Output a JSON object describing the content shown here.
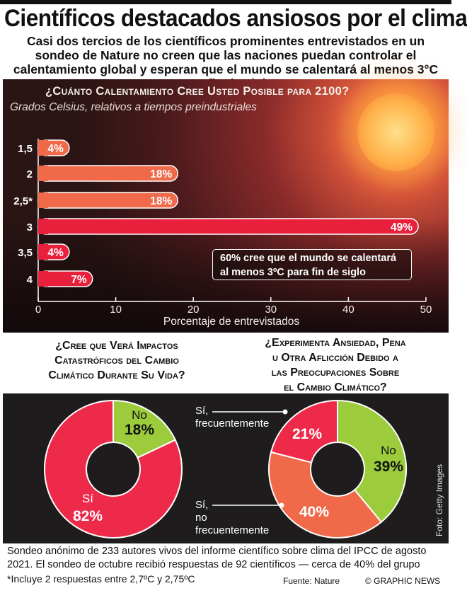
{
  "title": "Científicos destacados ansiosos por el clima",
  "subtitle": "Casi dos tercios de los científicos prominentes entrevistados en un sondeo de Nature no creen que las naciones puedan controlar el calentamiento global y esperan que el mundo se calentará al menos 3°C para fin de siglo",
  "colors": {
    "bar": "#f06a4a",
    "bar_highlight": "#e8203c",
    "yes": "#ee2a4a",
    "no": "#9ccc3c",
    "no_freq": "#f06a4a"
  },
  "chart_data": [
    {
      "type": "bar",
      "orientation": "horizontal",
      "title": "¿Cuánto Calentamiento Cree Usted Posible para 2100?",
      "subtitle": "Grados Celsius, relativos a tiempos preindustriales",
      "xlabel": "Porcentaje de entrevistados",
      "categories": [
        "1,5",
        "2",
        "2,5*",
        "3",
        "3,5",
        "4"
      ],
      "values": [
        4,
        18,
        18,
        49,
        4,
        7
      ],
      "value_labels": [
        "4%",
        "18%",
        "18%",
        "49%",
        "4%",
        "7%"
      ],
      "highlight": [
        "3",
        "3,5",
        "4"
      ],
      "xlim": [
        0,
        50
      ],
      "xticks": [
        "0",
        "10",
        "20",
        "30",
        "40",
        "50"
      ],
      "annotation": "60% cree que el mundo se calentará al menos 3ºC para fin de siglo"
    },
    {
      "type": "pie",
      "donut": true,
      "title": "¿Cree que Verá Impactos Catastróficos del Cambio Climático Durante Su Vida?",
      "labels": [
        "No",
        "Sí"
      ],
      "values": [
        18,
        82
      ],
      "value_labels": [
        "18%",
        "82%"
      ]
    },
    {
      "type": "pie",
      "donut": true,
      "title": "¿Experimenta Ansiedad, Pena u Otra Aflicción Debido a las Preocupaciones Sobre el Cambio Climático?",
      "labels": [
        "No",
        "Sí, no frecuentemente",
        "Sí, frecuentemente"
      ],
      "values": [
        39,
        40,
        21
      ],
      "value_labels": [
        "39%",
        "40%",
        "21%"
      ]
    }
  ],
  "q1_title": "¿Cuánto Calentamiento Cree Usted Posible para 2100?",
  "q1_note": "Grados Celsius, relativos a tiempos preindustriales",
  "q1_callout_line1": "60% cree que el mundo se calentará",
  "q1_callout_line2": "al menos 3ºC para fin de siglo",
  "q1_xlabel": "Porcentaje de entrevistados",
  "q2_title_l1": "¿Cree que Verá Impactos",
  "q2_title_l2": "Catastróficos del Cambio",
  "q2_title_l3": "Climático Durante Su Vida?",
  "q3_title_l1": "¿Experimenta Ansiedad, Pena",
  "q3_title_l2": "u Otra Aflicción Debido a",
  "q3_title_l3": "las Preocupaciones Sobre",
  "q3_title_l4": "el Cambio Climático?",
  "donut1_labels": {
    "no": "No",
    "no_pct": "18%",
    "yes": "Sí",
    "yes_pct": "82%"
  },
  "donut2_labels": {
    "freq_l1": "Sí,",
    "freq_l2": "frecuentemente",
    "freq_pct": "21%",
    "no": "No",
    "no_pct": "39%",
    "nofreq_l1": "Sí,",
    "nofreq_l2": "no",
    "nofreq_l3": "frecuentemente",
    "nofreq_pct": "40%"
  },
  "photo_credit": "Foto: Getty Images",
  "footnote": "Sondeo anónimo de 233 autores vivos del informe científico sobre clima del IPCC de agosto 2021. El sondeo de octubre recibió respuestas de 92 científicos — cerca de 40% del grupo",
  "footnote_star": "*Incluye 2 respuestas entre 2,7ºC y 2,75ºC",
  "source": "Fuente: Nature",
  "credit": "© GRAPHIC NEWS"
}
